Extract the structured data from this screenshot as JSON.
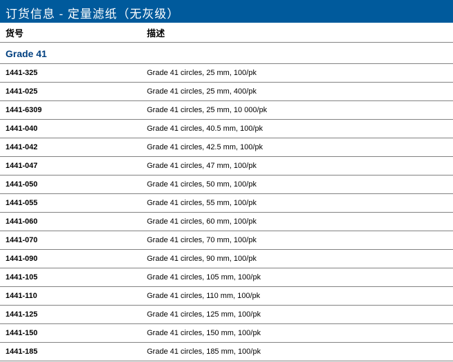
{
  "title": "订货信息 - 定量滤纸（无灰级）",
  "columns": {
    "code": "货号",
    "desc": "描述"
  },
  "grade_label": "Grade 41",
  "colors": {
    "header_bg": "#005a9c",
    "header_text": "#ffffff",
    "grade_text": "#004080",
    "border": "#808080",
    "row_bg": "#ffffff",
    "text": "#000000"
  },
  "rows": [
    {
      "code": "1441-325",
      "desc": "Grade 41 circles, 25 mm, 100/pk"
    },
    {
      "code": "1441-025",
      "desc": "Grade 41 circles, 25 mm, 400/pk"
    },
    {
      "code": "1441-6309",
      "desc": "Grade 41 circles, 25 mm, 10 000/pk"
    },
    {
      "code": "1441-040",
      "desc": "Grade 41 circles, 40.5 mm, 100/pk"
    },
    {
      "code": "1441-042",
      "desc": "Grade 41 circles, 42.5 mm, 100/pk"
    },
    {
      "code": "1441-047",
      "desc": "Grade 41 circles, 47 mm, 100/pk"
    },
    {
      "code": "1441-050",
      "desc": "Grade 41 circles, 50 mm, 100/pk"
    },
    {
      "code": "1441-055",
      "desc": "Grade 41 circles, 55 mm, 100/pk"
    },
    {
      "code": "1441-060",
      "desc": "Grade 41 circles, 60 mm, 100/pk"
    },
    {
      "code": "1441-070",
      "desc": "Grade 41 circles, 70 mm, 100/pk"
    },
    {
      "code": "1441-090",
      "desc": "Grade 41 circles, 90 mm, 100/pk"
    },
    {
      "code": "1441-105",
      "desc": "Grade 41 circles, 105 mm, 100/pk"
    },
    {
      "code": "1441-110",
      "desc": "Grade 41 circles, 110 mm, 100/pk"
    },
    {
      "code": "1441-125",
      "desc": "Grade 41 circles, 125 mm, 100/pk"
    },
    {
      "code": "1441-150",
      "desc": "Grade 41 circles, 150 mm, 100/pk"
    },
    {
      "code": "1441-185",
      "desc": "Grade 41 circles, 185 mm, 100/pk"
    }
  ]
}
